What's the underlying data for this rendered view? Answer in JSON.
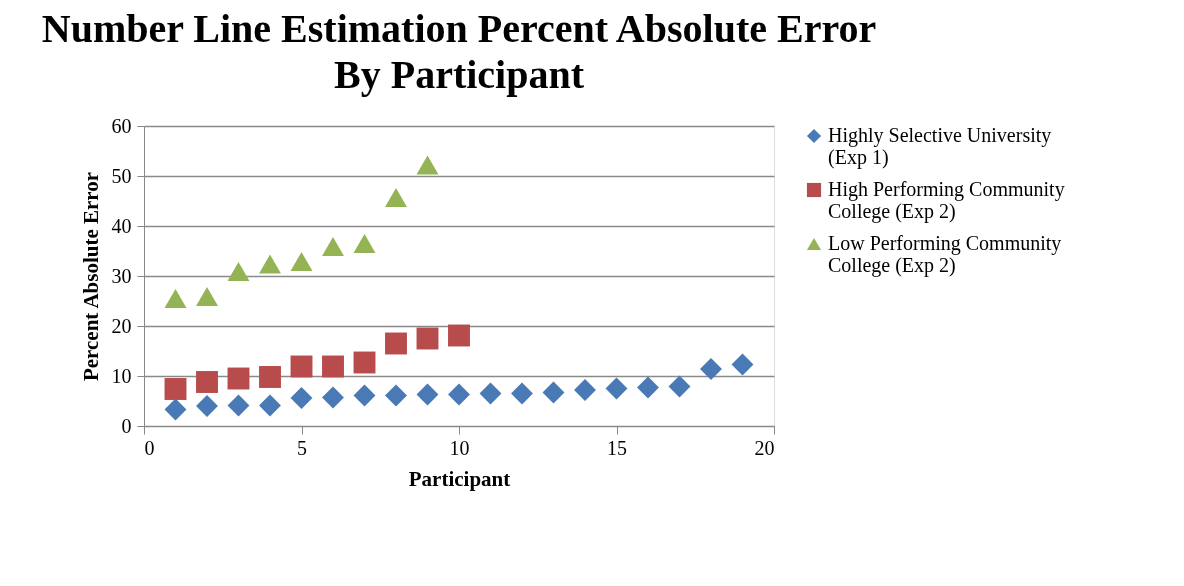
{
  "chart_data": {
    "type": "scatter",
    "title": "Number Line Estimation Percent Absolute Error By Participant",
    "xlabel": "Participant",
    "ylabel": "Percent Absolute Error",
    "xlim": [
      0,
      20
    ],
    "xticks": [
      0,
      5,
      10,
      15,
      20
    ],
    "ylim": [
      0,
      60
    ],
    "yticks": [
      0,
      10,
      20,
      30,
      40,
      50,
      60
    ],
    "grid": "y",
    "legend": "right",
    "series": [
      {
        "name": "Highly Selective University (Exp 1)",
        "color": "#4a7ab5",
        "marker": "diamond",
        "x": [
          1,
          2,
          3,
          4,
          5,
          6,
          7,
          8,
          9,
          10,
          11,
          12,
          13,
          14,
          15,
          16,
          17,
          18,
          19
        ],
        "values": [
          3.3,
          4.0,
          4.1,
          4.1,
          5.6,
          5.7,
          6.1,
          6.1,
          6.3,
          6.3,
          6.5,
          6.5,
          6.7,
          7.2,
          7.5,
          7.7,
          7.9,
          11.4,
          12.3
        ]
      },
      {
        "name": "High Performing Community College (Exp 2)",
        "color": "#b84b4b",
        "marker": "square",
        "x": [
          1,
          2,
          3,
          4,
          5,
          6,
          7,
          8,
          9,
          10
        ],
        "values": [
          7.4,
          8.8,
          9.5,
          9.8,
          11.9,
          11.9,
          12.7,
          16.5,
          17.5,
          18.1
        ]
      },
      {
        "name": "Low Performing Community College (Exp 2)",
        "color": "#93b355",
        "marker": "triangle",
        "x": [
          1,
          2,
          3,
          4,
          5,
          6,
          7,
          8,
          9
        ],
        "values": [
          25.5,
          25.9,
          30.9,
          32.4,
          32.9,
          35.9,
          36.5,
          45.7,
          52.2
        ]
      }
    ]
  }
}
